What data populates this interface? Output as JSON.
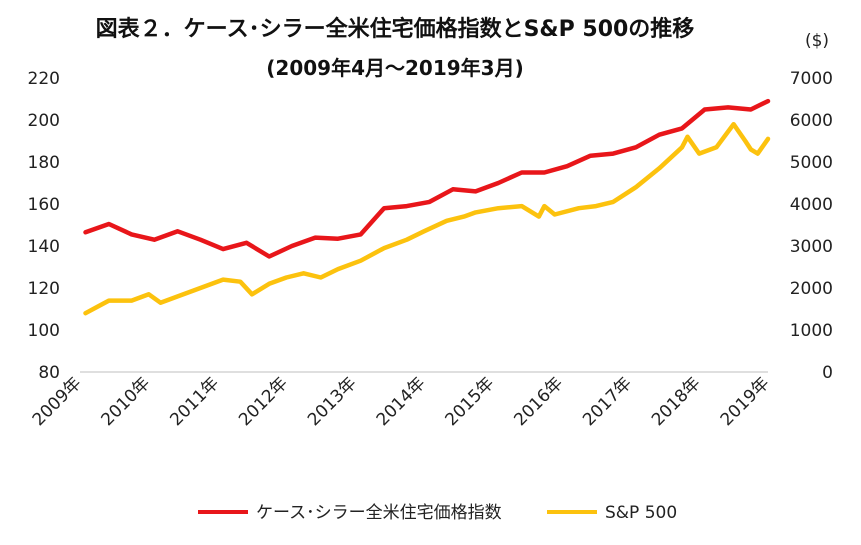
{
  "chart_data": {
    "type": "line",
    "title": "図表２．ケース･シラー全米住宅価格指数とS&P 500の推移",
    "subtitle": "(2009年4月～2019年3月)",
    "x_tick_labels": [
      "2009年",
      "2010年",
      "2011年",
      "2012年",
      "2013年",
      "2014年",
      "2015年",
      "2016年",
      "2017年",
      "2018年",
      "2019年"
    ],
    "left_axis": {
      "ylim": [
        80,
        220
      ],
      "ticks": [
        80,
        100,
        120,
        140,
        160,
        180,
        200,
        220
      ]
    },
    "right_axis": {
      "unit_label": "($)",
      "ylim": [
        0,
        7000
      ],
      "ticks": [
        0,
        1000,
        2000,
        3000,
        4000,
        5000,
        6000,
        7000
      ]
    },
    "legend_position": "bottom",
    "grid": false,
    "series": [
      {
        "name": "ケース･シラー全米住宅価格指数",
        "axis": "left",
        "color": "#e8161a",
        "x": [
          2009.33,
          2009.67,
          2010.0,
          2010.33,
          2010.67,
          2011.0,
          2011.33,
          2011.67,
          2012.0,
          2012.33,
          2012.67,
          2013.0,
          2013.33,
          2013.67,
          2014.0,
          2014.33,
          2014.67,
          2015.0,
          2015.33,
          2015.67,
          2016.0,
          2016.33,
          2016.67,
          2017.0,
          2017.33,
          2017.67,
          2018.0,
          2018.33,
          2018.67,
          2019.0,
          2019.25
        ],
        "values": [
          146.5,
          150.5,
          145.5,
          143,
          147,
          143,
          138.5,
          141.5,
          135,
          140,
          144,
          143.5,
          145.5,
          158,
          159,
          161,
          167,
          166,
          170,
          175,
          175,
          178,
          183,
          184,
          187,
          193,
          196,
          205,
          206,
          205,
          209
        ]
      },
      {
        "name": "S&P 500",
        "axis": "right",
        "color": "#fcc20e",
        "x": [
          2009.33,
          2009.5,
          2009.67,
          2010.0,
          2010.25,
          2010.42,
          2010.67,
          2011.0,
          2011.33,
          2011.58,
          2011.75,
          2012.0,
          2012.25,
          2012.5,
          2012.75,
          2013.0,
          2013.33,
          2013.67,
          2014.0,
          2014.25,
          2014.58,
          2014.83,
          2015.0,
          2015.33,
          2015.67,
          2015.92,
          2016.0,
          2016.15,
          2016.5,
          2016.75,
          2017.0,
          2017.33,
          2017.67,
          2018.0,
          2018.08,
          2018.25,
          2018.5,
          2018.75,
          2018.92,
          2019.0,
          2019.1,
          2019.25
        ],
        "values": [
          1400,
          1550,
          1700,
          1700,
          1850,
          1650,
          1800,
          2000,
          2200,
          2150,
          1850,
          2100,
          2250,
          2350,
          2250,
          2450,
          2650,
          2950,
          3150,
          3350,
          3600,
          3700,
          3800,
          3900,
          3950,
          3700,
          3950,
          3750,
          3900,
          3950,
          4050,
          4400,
          4850,
          5350,
          5600,
          5200,
          5350,
          5900,
          5500,
          5300,
          5200,
          5550
        ]
      }
    ]
  }
}
